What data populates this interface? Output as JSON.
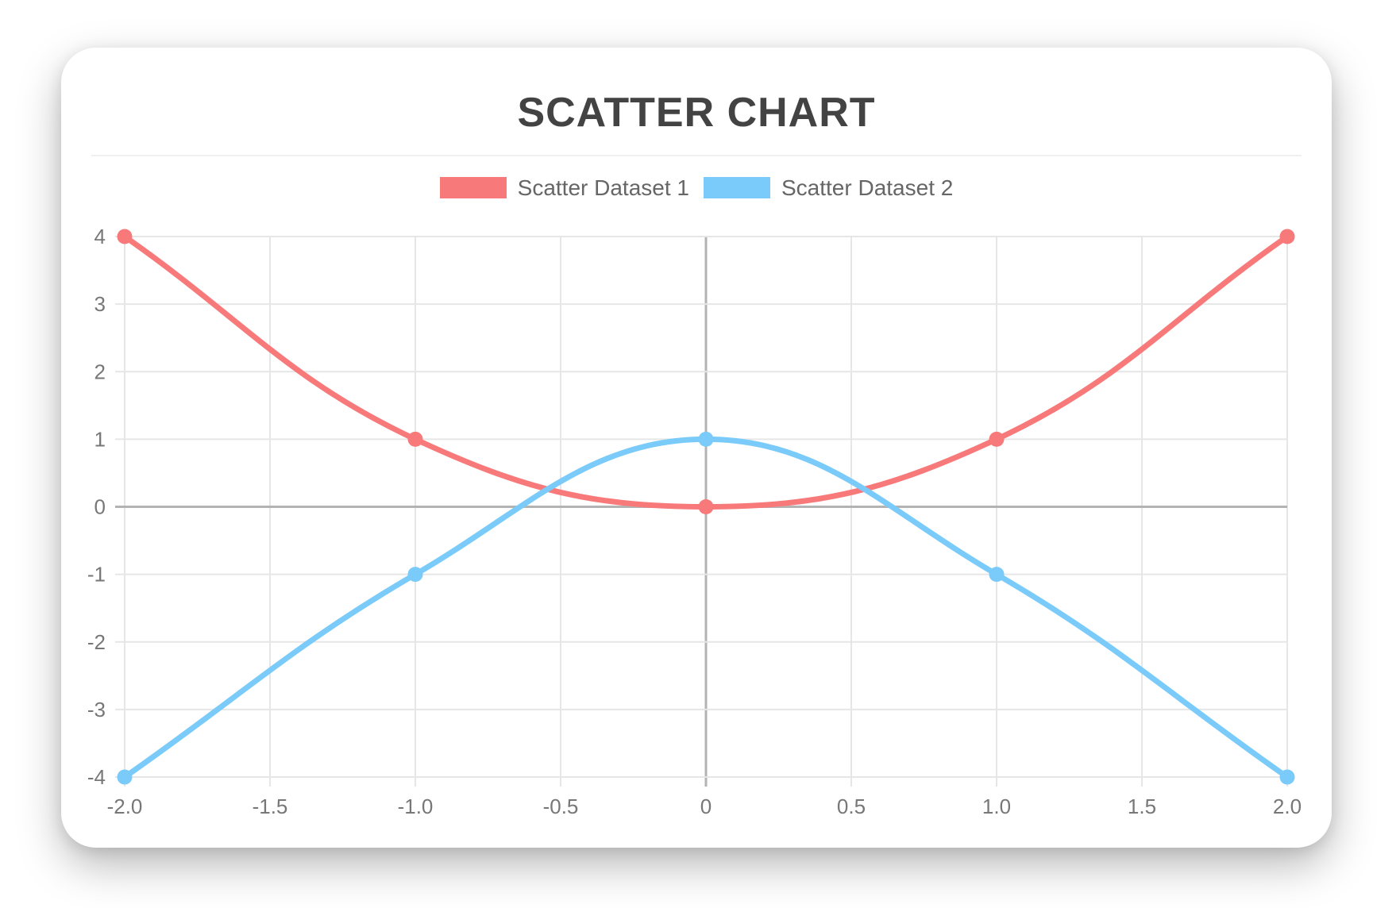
{
  "header": {
    "title": "SCATTER CHART"
  },
  "legend": {
    "items": [
      {
        "label": "Scatter Dataset 1",
        "color": "#f87979"
      },
      {
        "label": "Scatter Dataset 2",
        "color": "#7acbf9"
      }
    ]
  },
  "chart_data": {
    "type": "scatter",
    "title": "SCATTER CHART",
    "xlabel": "",
    "ylabel": "",
    "xlim": [
      -2,
      2
    ],
    "ylim": [
      -4,
      4
    ],
    "x_ticks": [
      "-2.0",
      "-1.5",
      "-1.0",
      "-0.5",
      "0",
      "0.5",
      "1.0",
      "1.5",
      "2.0"
    ],
    "y_ticks": [
      "4",
      "3",
      "2",
      "1",
      "0",
      "-1",
      "-2",
      "-3",
      "-4"
    ],
    "grid": true,
    "legend_position": "top",
    "line_tension": 0.4,
    "series": [
      {
        "name": "Scatter Dataset 1",
        "color": "#f87979",
        "show_line": true,
        "points": [
          {
            "x": -2,
            "y": 4
          },
          {
            "x": -1,
            "y": 1
          },
          {
            "x": 0,
            "y": 0
          },
          {
            "x": 1,
            "y": 1
          },
          {
            "x": 2,
            "y": 4
          }
        ]
      },
      {
        "name": "Scatter Dataset 2",
        "color": "#7acbf9",
        "show_line": true,
        "points": [
          {
            "x": -2,
            "y": -4
          },
          {
            "x": -1,
            "y": -1
          },
          {
            "x": 0,
            "y": 1
          },
          {
            "x": 1,
            "y": -1
          },
          {
            "x": 2,
            "y": -4
          }
        ]
      }
    ],
    "style": {
      "grid_color": "#e6e6e6",
      "zero_line_color": "#b3b3b3",
      "tick_text_color": "#777777",
      "line_width": 7,
      "point_radius": 9.5
    }
  }
}
